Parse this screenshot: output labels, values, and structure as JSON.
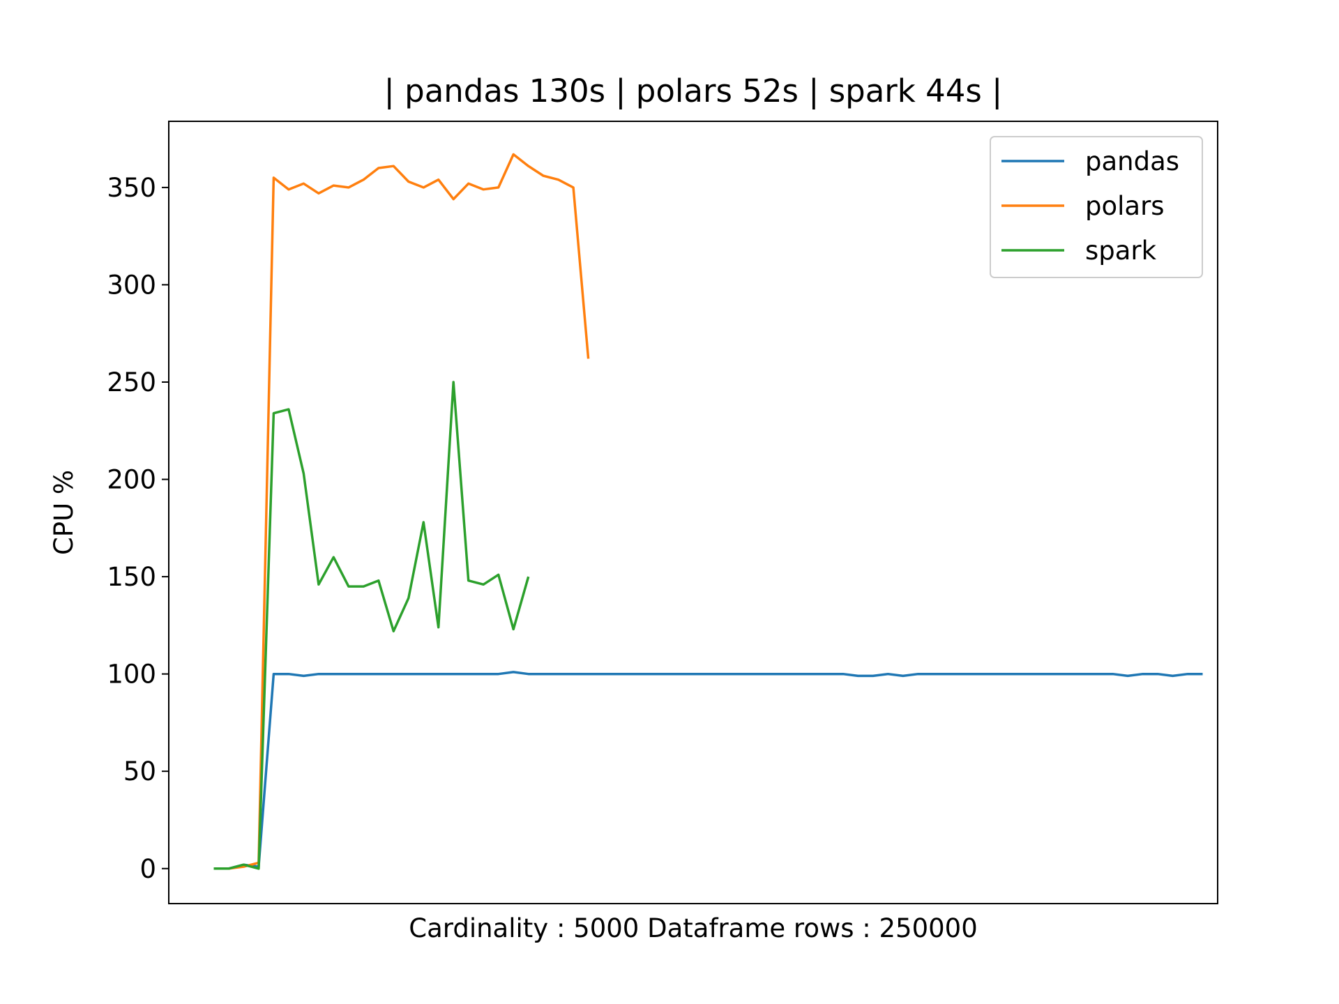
{
  "chart_data": {
    "type": "line",
    "title": "| pandas 130s | polars 52s | spark 44s |",
    "xlabel": "Cardinality : 5000 Dataframe rows : 250000",
    "ylabel": "CPU %",
    "ylim": [
      -18,
      384
    ],
    "yticks": [
      0,
      50,
      100,
      150,
      200,
      250,
      300,
      350
    ],
    "xlim": [
      -3,
      67
    ],
    "xticks_visible": false,
    "grid": false,
    "legend_position": "top-right",
    "series": [
      {
        "name": "pandas",
        "color": "#1f77b4",
        "values": [
          0,
          0,
          2,
          1,
          100,
          100,
          99,
          100,
          100,
          100,
          100,
          100,
          100,
          100,
          100,
          100,
          100,
          100,
          100,
          100,
          101,
          100,
          100,
          100,
          100,
          100,
          100,
          100,
          100,
          100,
          100,
          100,
          100,
          100,
          100,
          100,
          100,
          100,
          100,
          100,
          100,
          100,
          100,
          99,
          99,
          100,
          99,
          100,
          100,
          100,
          100,
          100,
          100,
          100,
          100,
          100,
          100,
          100,
          100,
          100,
          100,
          99,
          100,
          100,
          99,
          100,
          100
        ]
      },
      {
        "name": "polars",
        "color": "#ff7f0e",
        "values": [
          0,
          0,
          1,
          3,
          355,
          349,
          352,
          347,
          351,
          350,
          354,
          360,
          361,
          353,
          350,
          354,
          344,
          352,
          349,
          350,
          367,
          361,
          356,
          354,
          350,
          262
        ]
      },
      {
        "name": "spark",
        "color": "#2ca02c",
        "values": [
          0,
          0,
          2,
          0,
          234,
          236,
          203,
          146,
          160,
          145,
          145,
          148,
          122,
          139,
          178,
          124,
          250,
          148,
          146,
          151,
          123,
          150
        ]
      }
    ]
  }
}
